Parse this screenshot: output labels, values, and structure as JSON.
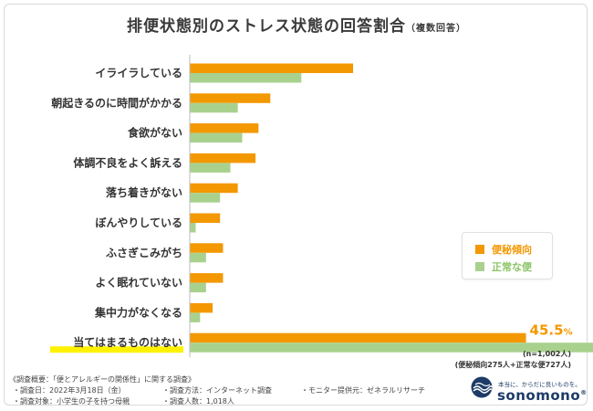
{
  "title": "排便状態別のストレス状態の回答割合",
  "title_note": "（複数回答）",
  "chart_data": {
    "type": "bar",
    "orientation": "horizontal",
    "categories": [
      "イライラしている",
      "朝起きるのに時間がかかる",
      "食欲がない",
      "体調不良をよく訴える",
      "落ち着きがない",
      "ぼんやりしている",
      "ふさぎこみがち",
      "よく眠れていない",
      "集中力がなくなる",
      "当てはまるものはない"
    ],
    "series": [
      {
        "name": "便秘傾向",
        "color": "#F39800",
        "values": [
          22.1,
          10.9,
          9.3,
          8.9,
          6.5,
          4.1,
          4.5,
          4.5,
          3.1,
          45.5
        ]
      },
      {
        "name": "正常な便",
        "color": "#A9D18E",
        "values": [
          15.1,
          6.5,
          7.1,
          5.5,
          4.1,
          0.8,
          2.2,
          2.2,
          1.4,
          56.1
        ]
      }
    ],
    "data_labels": [
      {
        "category": "当てはまるものはない",
        "series": "便秘傾向",
        "number": "45.5",
        "unit": "%"
      },
      {
        "category": "当てはまるものはない",
        "series": "正常な便",
        "number": "56.1",
        "unit": "%"
      }
    ],
    "highlight_category": "当てはまるものはない",
    "xlim": [
      0,
      60
    ],
    "grid": false,
    "legend_position": "right"
  },
  "notes": {
    "n": "(n=1,002人)",
    "breakdown": "(便秘傾向275人+正常な便727人)"
  },
  "survey": {
    "heading": "《調査概要：「便とアレルギーの関係性」に関する調査》",
    "date": "・調査日：2022年3月18日（金）",
    "method": "・調査方法：インターネット調査",
    "provider": "・モニター提供元：ゼネラルリサーチ",
    "target": "・調査対象：小学生の子を持つ母親",
    "count": "・調査人数：1,018人"
  },
  "brand": {
    "tagline": "本当に、からだに良いものを。",
    "name": "sonomono",
    "mark": "®",
    "icon": "wave-logo-icon",
    "color": "#1D3B67"
  }
}
